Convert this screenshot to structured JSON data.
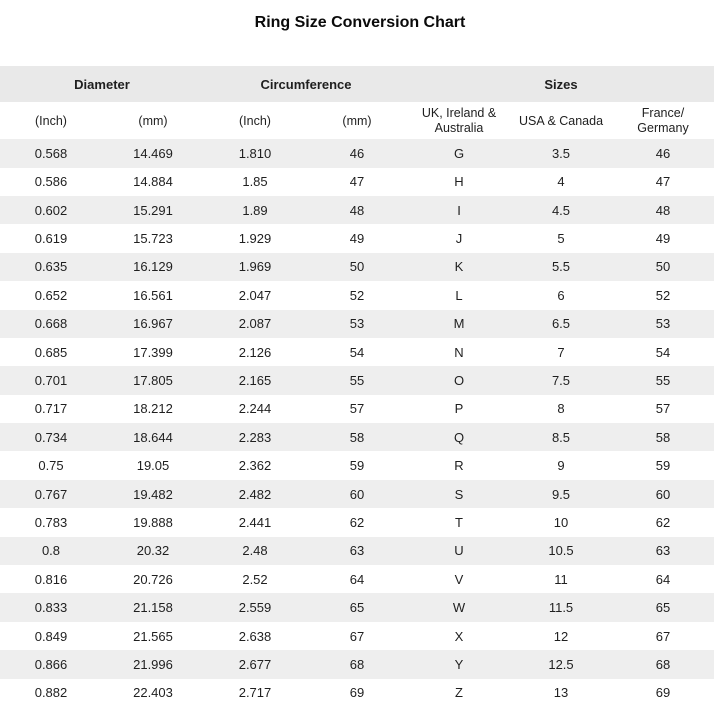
{
  "title": "Ring Size Conversion Chart",
  "chart_data": {
    "type": "table",
    "title": "Ring Size Conversion Chart",
    "group_headers": [
      {
        "label": "Diameter",
        "colspan": 2
      },
      {
        "label": "Circumference",
        "colspan": 2
      },
      {
        "label": "Sizes",
        "colspan": 3
      }
    ],
    "columns": [
      "(Inch)",
      "(mm)",
      "(Inch)",
      "(mm)",
      "UK, Ireland & Australia",
      "USA & Canada",
      "France/ Germany"
    ],
    "rows": [
      [
        "0.568",
        "14.469",
        "1.810",
        "46",
        "G",
        "3.5",
        "46"
      ],
      [
        "0.586",
        "14.884",
        "1.85",
        "47",
        "H",
        "4",
        "47"
      ],
      [
        "0.602",
        "15.291",
        "1.89",
        "48",
        "I",
        "4.5",
        "48"
      ],
      [
        "0.619",
        "15.723",
        "1.929",
        "49",
        "J",
        "5",
        "49"
      ],
      [
        "0.635",
        "16.129",
        "1.969",
        "50",
        "K",
        "5.5",
        "50"
      ],
      [
        "0.652",
        "16.561",
        "2.047",
        "52",
        "L",
        "6",
        "52"
      ],
      [
        "0.668",
        "16.967",
        "2.087",
        "53",
        "M",
        "6.5",
        "53"
      ],
      [
        "0.685",
        "17.399",
        "2.126",
        "54",
        "N",
        "7",
        "54"
      ],
      [
        "0.701",
        "17.805",
        "2.165",
        "55",
        "O",
        "7.5",
        "55"
      ],
      [
        "0.717",
        "18.212",
        "2.244",
        "57",
        "P",
        "8",
        "57"
      ],
      [
        "0.734",
        "18.644",
        "2.283",
        "58",
        "Q",
        "8.5",
        "58"
      ],
      [
        "0.75",
        "19.05",
        "2.362",
        "59",
        "R",
        "9",
        "59"
      ],
      [
        "0.767",
        "19.482",
        "2.482",
        "60",
        "S",
        "9.5",
        "60"
      ],
      [
        "0.783",
        "19.888",
        "2.441",
        "62",
        "T",
        "10",
        "62"
      ],
      [
        "0.8",
        "20.32",
        "2.48",
        "63",
        "U",
        "10.5",
        "63"
      ],
      [
        "0.816",
        "20.726",
        "2.52",
        "64",
        "V",
        "11",
        "64"
      ],
      [
        "0.833",
        "21.158",
        "2.559",
        "65",
        "W",
        "11.5",
        "65"
      ],
      [
        "0.849",
        "21.565",
        "2.638",
        "67",
        "X",
        "12",
        "67"
      ],
      [
        "0.866",
        "21.996",
        "2.677",
        "68",
        "Y",
        "12.5",
        "68"
      ],
      [
        "0.882",
        "22.403",
        "2.717",
        "69",
        "Z",
        "13",
        "69"
      ]
    ]
  },
  "colors": {
    "header_band": "#e9e9e9",
    "row_stripe": "#eeeeee",
    "text": "#1f1f1f",
    "background": "#ffffff"
  }
}
